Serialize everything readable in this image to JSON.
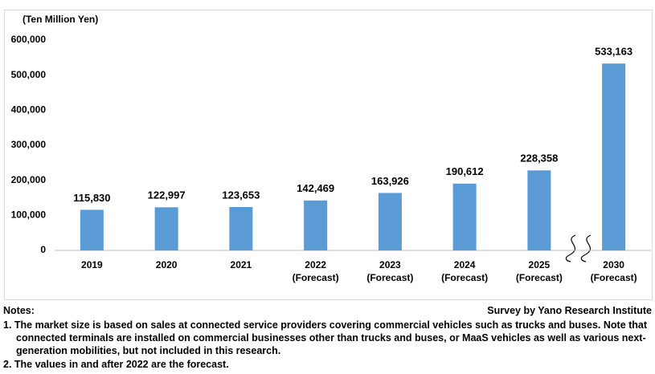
{
  "chart_data": {
    "type": "bar",
    "y_axis_label": "(Ten Million Yen)",
    "categories": [
      "2019",
      "2020",
      "2021",
      "2022 (Forecast)",
      "2023 (Forecast)",
      "2024 (Forecast)",
      "2025 (Forecast)",
      "2030 (Forecast)"
    ],
    "values": [
      115830,
      122997,
      123653,
      142469,
      163926,
      190612,
      228358,
      533163
    ],
    "value_labels": [
      "115,830",
      "122,997",
      "123,653",
      "142,469",
      "163,926",
      "190,612",
      "228,358",
      "533,163"
    ],
    "color": "#5b9bd5",
    "ylim": [
      0,
      600000
    ],
    "yticks": [
      0,
      {
        "value": 100000,
        "label": "100,000"
      },
      {
        "value": 200000,
        "label": "200,000"
      },
      {
        "value": 300000,
        "label": "300,000"
      },
      {
        "value": 400000,
        "label": "400,000"
      },
      {
        "value": 500000,
        "label": "500,000"
      },
      {
        "value": 600000,
        "label": "600,000"
      }
    ],
    "grid": false
  },
  "notes": {
    "title": "Notes:",
    "source": "Survey by Yano Research Institute",
    "items": [
      "1. The market size is based on sales at connected service providers covering commercial vehicles such as trucks and buses. Note that connected terminals are installed on commercial businesses other than trucks and buses, or MaaS vehicles as well as various next-generation mobilities, but not included in this research.",
      "2. The values in and after 2022 are the forecast."
    ]
  }
}
